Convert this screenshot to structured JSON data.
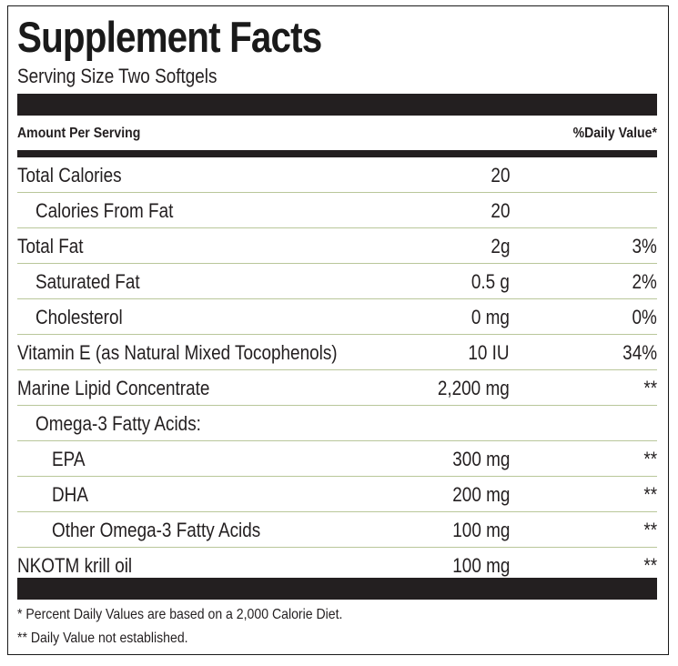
{
  "title": "Supplement Facts",
  "serving_size": "Serving Size Two Softgels",
  "header": {
    "amount": "Amount Per Serving",
    "daily_value": "%Daily Value*"
  },
  "rows": [
    {
      "name": "Total Calories",
      "amount": "20",
      "dv": ""
    },
    {
      "name": "Calories From Fat",
      "amount": "20",
      "dv": ""
    },
    {
      "name": "Total Fat",
      "amount": "2g",
      "dv": "3%"
    },
    {
      "name": "Saturated Fat",
      "amount": "0.5 g",
      "dv": "2%"
    },
    {
      "name": "Cholesterol",
      "amount": "0 mg",
      "dv": "0%"
    },
    {
      "name": "Vitamin E (as Natural Mixed Tocophenols)",
      "amount": "10 IU",
      "dv": "34%"
    },
    {
      "name": "Marine Lipid Concentrate",
      "amount": "2,200 mg",
      "dv": "**"
    },
    {
      "name": "Omega-3 Fatty Acids:",
      "amount": "",
      "dv": ""
    },
    {
      "name": "EPA",
      "amount": "300 mg",
      "dv": "**"
    },
    {
      "name": "DHA",
      "amount": "200 mg",
      "dv": "**"
    },
    {
      "name": "Other Omega-3 Fatty Acids",
      "amount": "100 mg",
      "dv": "**"
    },
    {
      "name": "NKOTM krill oil",
      "amount": "100 mg",
      "dv": "**"
    }
  ],
  "footnotes": [
    "* Percent Daily Values are based on a 2,000 Calorie Diet.",
    "** Daily Value not established."
  ]
}
